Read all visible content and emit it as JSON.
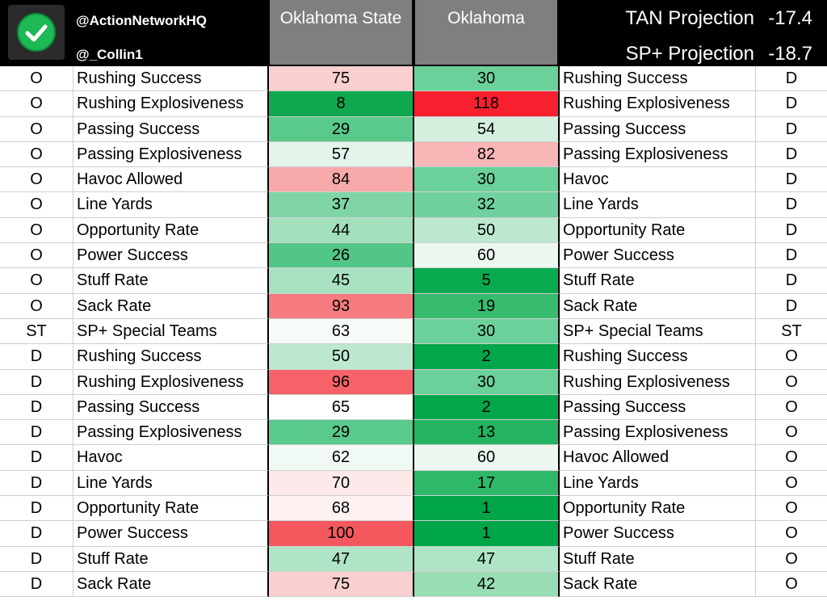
{
  "header": {
    "handle1": "@ActionNetworkHQ",
    "handle2": "@_Collin1",
    "team_a": "Oklahoma State",
    "team_b": "Oklahoma",
    "tan_label": "TAN Projection",
    "tan_value": "-17.4",
    "sp_label": "SP+ Projection",
    "sp_value": "-18.7"
  },
  "rows": [
    {
      "side": "O",
      "metric": "Rushing Success",
      "a": "75",
      "b": "30",
      "opp_metric": "Rushing Success",
      "opp_side": "D",
      "a_color": "#f9cfcf",
      "b_color": "#6ad19a"
    },
    {
      "side": "O",
      "metric": "Rushing Explosiveness",
      "a": "8",
      "b": "118",
      "opp_metric": "Rushing Explosiveness",
      "opp_side": "D",
      "a_color": "#10a84f",
      "b_color": "#f8202e"
    },
    {
      "side": "O",
      "metric": "Passing Success",
      "a": "29",
      "b": "54",
      "opp_metric": "Passing Success",
      "opp_side": "D",
      "a_color": "#59c98c",
      "b_color": "#d5efde"
    },
    {
      "side": "O",
      "metric": "Passing Explosiveness",
      "a": "57",
      "b": "82",
      "opp_metric": "Passing Explosiveness",
      "opp_side": "D",
      "a_color": "#e3f4ea",
      "b_color": "#f9b6b6"
    },
    {
      "side": "O",
      "metric": "Havoc Allowed",
      "a": "84",
      "b": "30",
      "opp_metric": "Havoc",
      "opp_side": "D",
      "a_color": "#f8a9aa",
      "b_color": "#6ad19a"
    },
    {
      "side": "O",
      "metric": "Line Yards",
      "a": "37",
      "b": "32",
      "opp_metric": "Line Yards",
      "opp_side": "D",
      "a_color": "#7fd5a6",
      "b_color": "#6fd19e"
    },
    {
      "side": "O",
      "metric": "Opportunity Rate",
      "a": "44",
      "b": "50",
      "opp_metric": "Opportunity Rate",
      "opp_side": "D",
      "a_color": "#a2e0bc",
      "b_color": "#bde8cf"
    },
    {
      "side": "O",
      "metric": "Power Success",
      "a": "26",
      "b": "60",
      "opp_metric": "Power Success",
      "opp_side": "D",
      "a_color": "#52c686",
      "b_color": "#ecf7f0"
    },
    {
      "side": "O",
      "metric": "Stuff Rate",
      "a": "45",
      "b": "5",
      "opp_metric": "Stuff Rate",
      "opp_side": "D",
      "a_color": "#a9e2c2",
      "b_color": "#0aaa50"
    },
    {
      "side": "O",
      "metric": "Sack Rate",
      "a": "93",
      "b": "19",
      "opp_metric": "Sack Rate",
      "opp_side": "D",
      "a_color": "#f57b7f",
      "b_color": "#36bb6f"
    },
    {
      "side": "ST",
      "metric": "SP+ Special Teams",
      "a": "63",
      "b": "30",
      "opp_metric": "SP+ Special Teams",
      "opp_side": "ST",
      "a_color": "#f6fbf8",
      "b_color": "#6ad19a"
    },
    {
      "side": "D",
      "metric": "Rushing Success",
      "a": "50",
      "b": "2",
      "opp_metric": "Rushing Success",
      "opp_side": "O",
      "a_color": "#bde8cf",
      "b_color": "#03a64a"
    },
    {
      "side": "D",
      "metric": "Rushing Explosiveness",
      "a": "96",
      "b": "30",
      "opp_metric": "Rushing Explosiveness",
      "opp_side": "O",
      "a_color": "#f56368",
      "b_color": "#6ad19a"
    },
    {
      "side": "D",
      "metric": "Passing Success",
      "a": "65",
      "b": "2",
      "opp_metric": "Passing Success",
      "opp_side": "O",
      "a_color": "#ffffff",
      "b_color": "#03a64a"
    },
    {
      "side": "D",
      "metric": "Passing Explosiveness",
      "a": "29",
      "b": "13",
      "opp_metric": "Passing Explosiveness",
      "opp_side": "O",
      "a_color": "#59c98c",
      "b_color": "#23b361"
    },
    {
      "side": "D",
      "metric": "Havoc",
      "a": "62",
      "b": "60",
      "opp_metric": "Havoc Allowed",
      "opp_side": "O",
      "a_color": "#f1f9f4",
      "b_color": "#ecf7f0"
    },
    {
      "side": "D",
      "metric": "Line Yards",
      "a": "70",
      "b": "17",
      "opp_metric": "Line Yards",
      "opp_side": "O",
      "a_color": "#fde9e9",
      "b_color": "#2fb86a"
    },
    {
      "side": "D",
      "metric": "Opportunity Rate",
      "a": "68",
      "b": "1",
      "opp_metric": "Opportunity Rate",
      "opp_side": "O",
      "a_color": "#fdf1f1",
      "b_color": "#00a548"
    },
    {
      "side": "D",
      "metric": "Power Success",
      "a": "100",
      "b": "1",
      "opp_metric": "Power Success",
      "opp_side": "O",
      "a_color": "#f4585e",
      "b_color": "#00a548"
    },
    {
      "side": "D",
      "metric": "Stuff Rate",
      "a": "47",
      "b": "47",
      "opp_metric": "Stuff Rate",
      "opp_side": "O",
      "a_color": "#b0e4c6",
      "b_color": "#b0e4c6"
    },
    {
      "side": "D",
      "metric": "Sack Rate",
      "a": "75",
      "b": "42",
      "opp_metric": "Sack Rate",
      "opp_side": "O",
      "a_color": "#f9cfcf",
      "b_color": "#99ddb5"
    }
  ],
  "colors": {
    "header_bg": "#000000",
    "team_header_bg": "#7f7f7f",
    "logo_green": "#1db954"
  },
  "icons": {
    "logo": "check-circle-icon"
  }
}
